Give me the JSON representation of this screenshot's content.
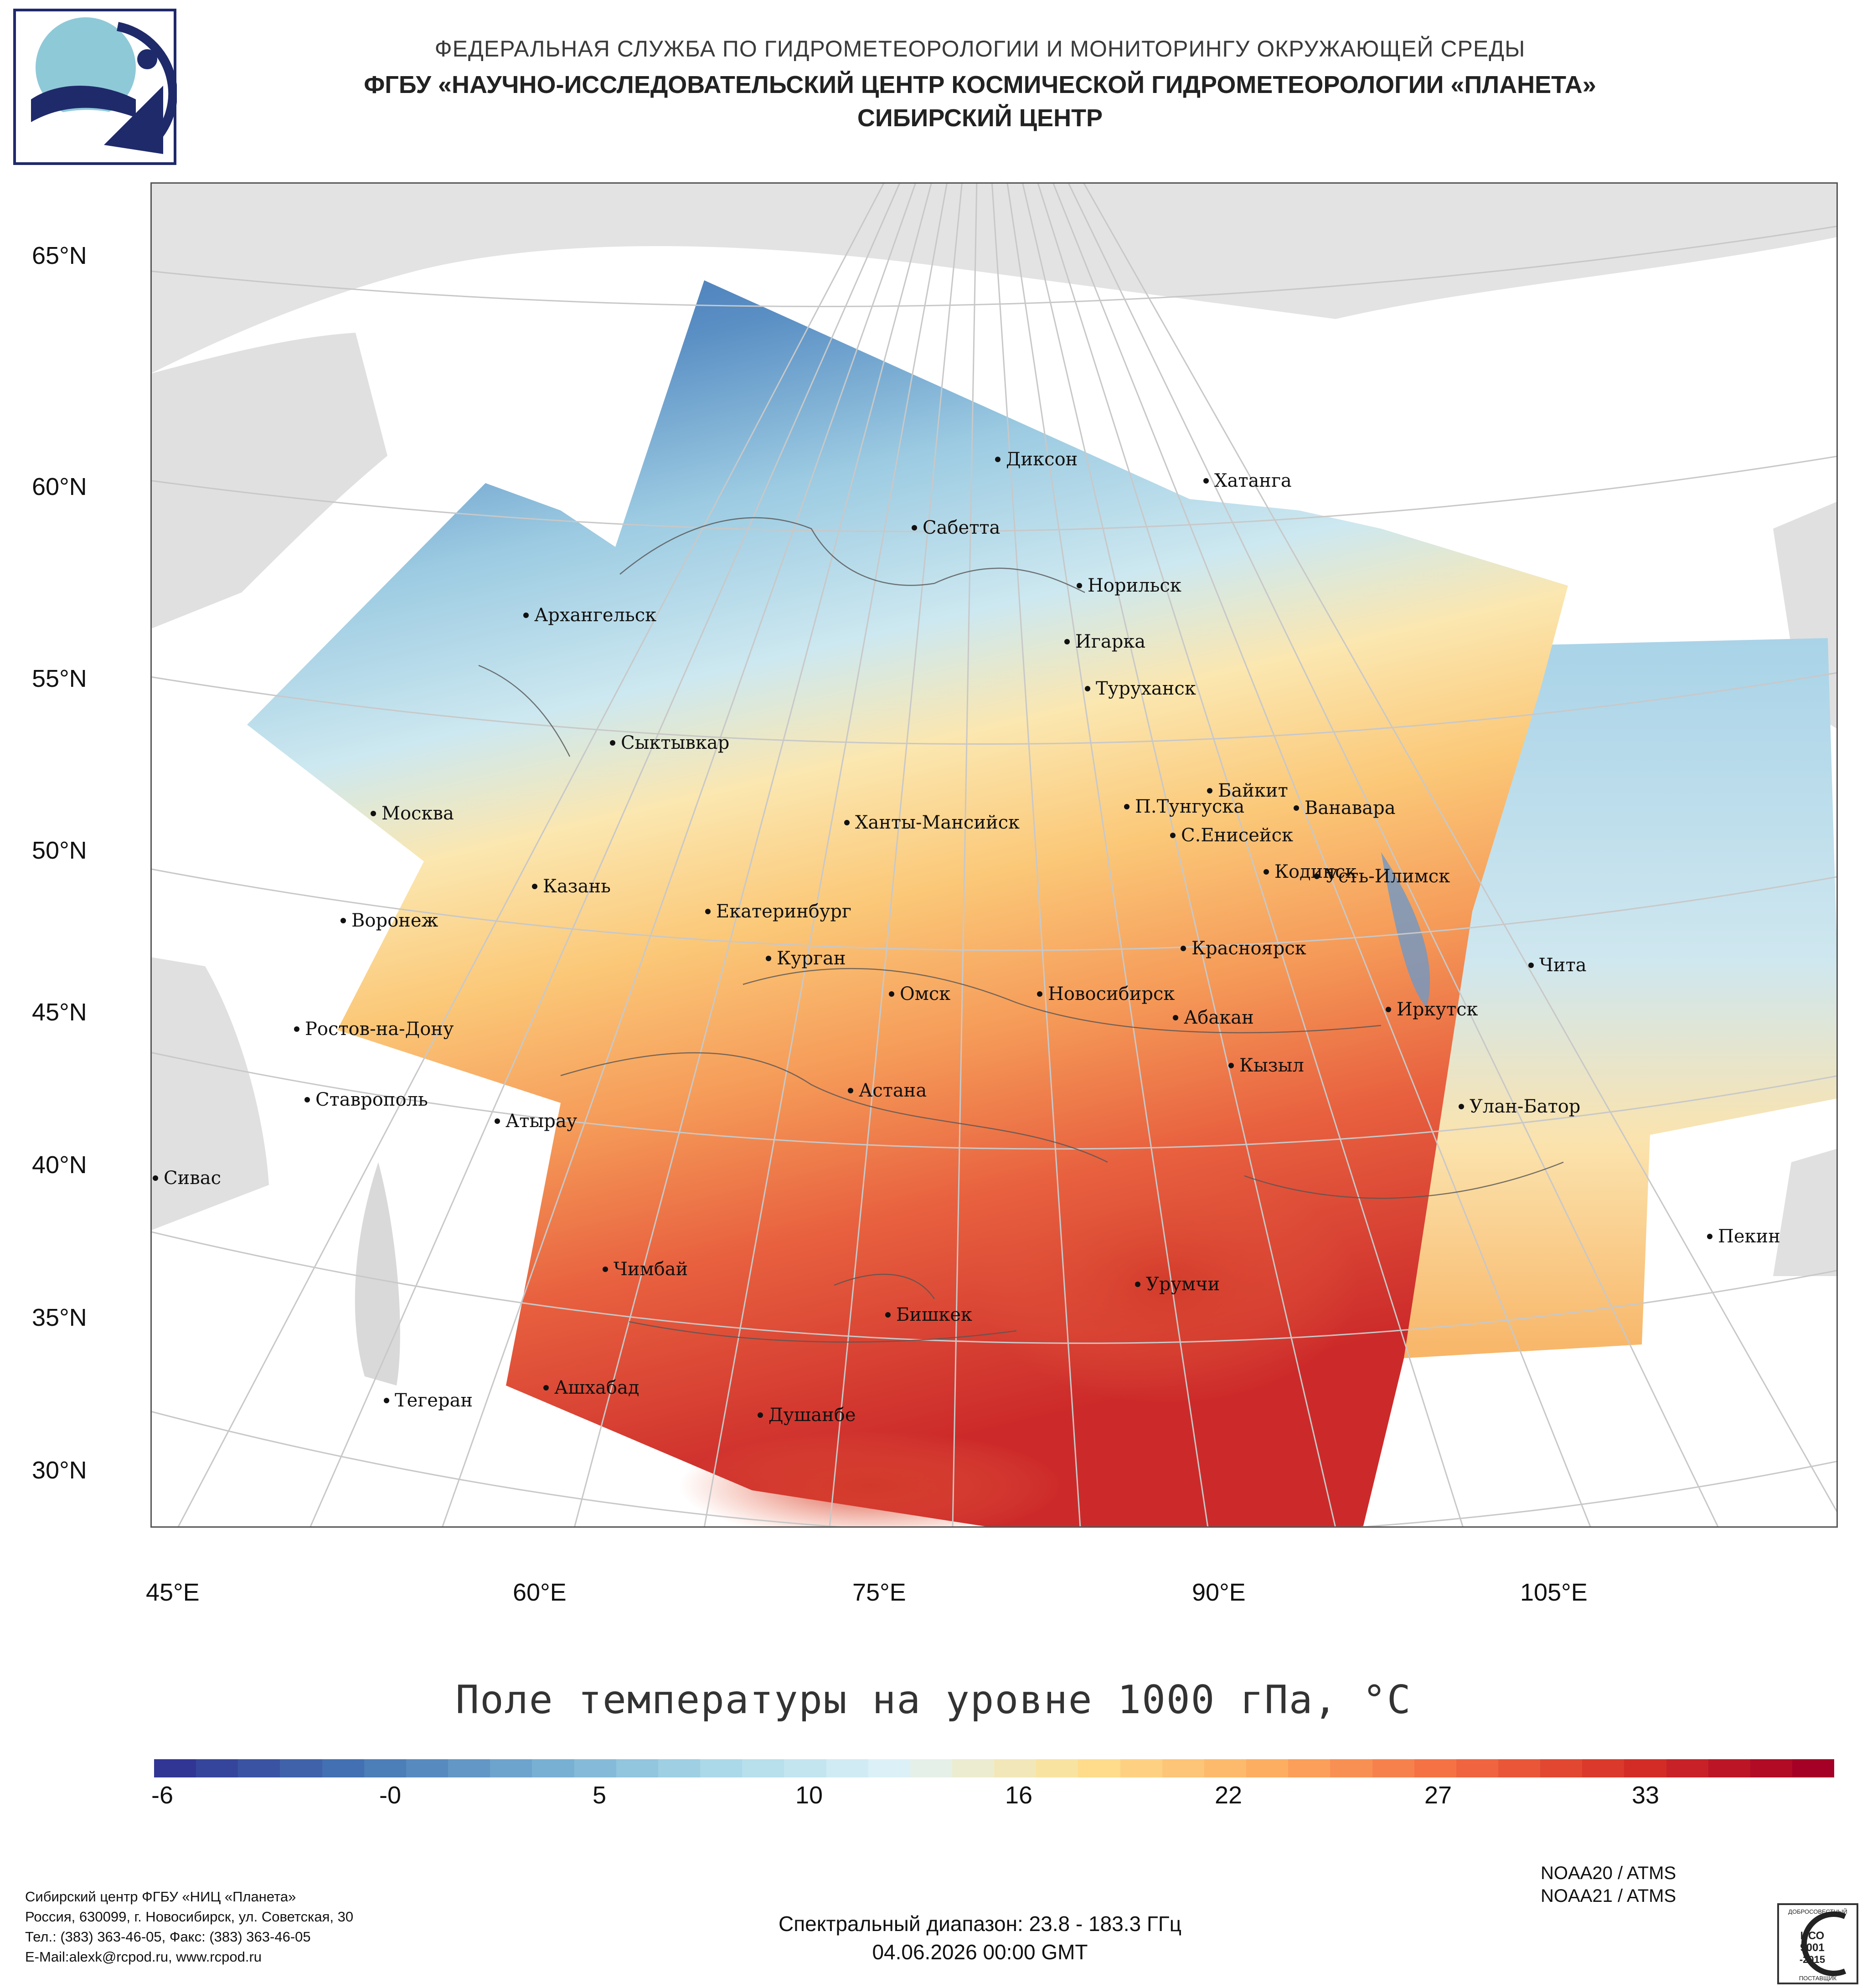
{
  "header": {
    "line1": "ФЕДЕРАЛЬНАЯ СЛУЖБА ПО ГИДРОМЕТЕОРОЛОГИИ И МОНИТОРИНГУ ОКРУЖАЮЩЕЙ СРЕДЫ",
    "line2": "ФГБУ «НАУЧНО-ИССЛЕДОВАТЕЛЬСКИЙ ЦЕНТР КОСМИЧЕСКОЙ ГИДРОМЕТЕОРОЛОГИИ «ПЛАНЕТА»",
    "line3": "СИБИРСКИЙ ЦЕНТР"
  },
  "map": {
    "lat_labels": [
      "65°N",
      "60°N",
      "55°N",
      "50°N",
      "45°N",
      "40°N",
      "35°N",
      "30°N"
    ],
    "lon_labels": [
      "45°E",
      "60°E",
      "75°E",
      "90°E",
      "105°E"
    ],
    "cities": [
      "Диксон",
      "Хатанга",
      "Сабетта",
      "Норильск",
      "Архангельск",
      "Игарка",
      "Туруханск",
      "Сыктывкар",
      "Байкит",
      "Москва",
      "Ханты-Мансийск",
      "П.Тунгуска",
      "Ванавара",
      "С.Енисейск",
      "Казань",
      "Кодинск",
      "Усть-Илимск",
      "Екатеринбург",
      "Воронеж",
      "Красноярск",
      "Курган",
      "Чита",
      "Омск",
      "Новосибирск",
      "Иркутск",
      "Ростов-на-Дону",
      "Абакан",
      "Кызыл",
      "Ставрополь",
      "Астана",
      "Улан-Батор",
      "Атырау",
      "Сивас",
      "Пекин",
      "Чимбай",
      "Урумчи",
      "Бишкек",
      "Ашхабад",
      "Тегеран",
      "Душанбе"
    ]
  },
  "title": "Поле температуры на уровне 1000 гПа, °C",
  "colorbar": {
    "labels": [
      "-6",
      "-0",
      "5",
      "10",
      "16",
      "22",
      "27",
      "33"
    ],
    "colors": [
      "#313695",
      "#4575b4",
      "#74add1",
      "#abd9e9",
      "#e0f3f8",
      "#fee090",
      "#fdae61",
      "#f46d43",
      "#d73027",
      "#a50026"
    ]
  },
  "footer": {
    "org_lines": [
      "Сибирский центр ФГБУ «НИЦ «Планета»",
      "Россия, 630099, г. Новосибирск, ул. Советская, 30",
      "Тел.: (383) 363-46-05, Факс: (383) 363-46-05",
      "E-Mail:alexk@rcpod.ru, www.rcpod.ru"
    ],
    "spectral": "Спектральный диапазон: 23.8 - 183.3 ГГц",
    "datetime": "04.06.2026 00:00 GMT",
    "sat1": "NOAA20 / ATMS",
    "sat2": "NOAA21 / ATMS",
    "iso_lines": [
      "ДОБРОСОВЕСТНЫЙ",
      "ИСО",
      "9001",
      "-2015",
      "ПОСТАВЩИК"
    ]
  }
}
